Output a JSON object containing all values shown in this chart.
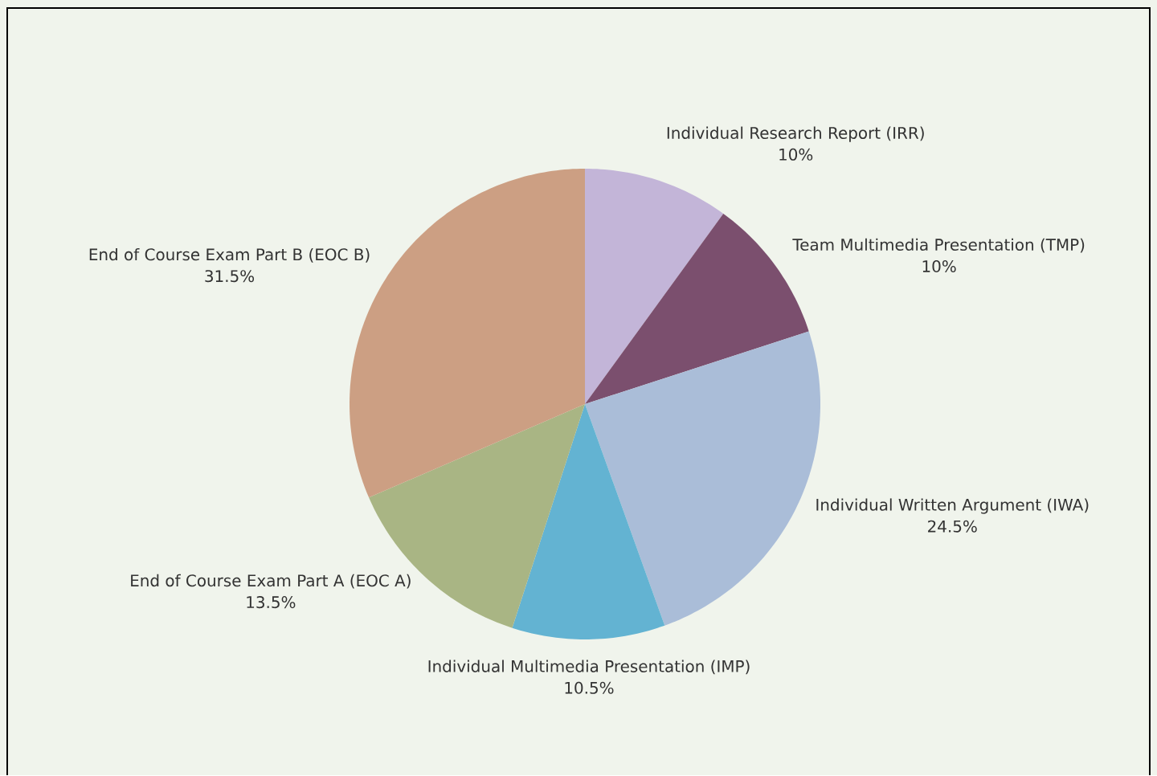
{
  "chart_data": {
    "type": "pie",
    "categories": [
      "Individual Research Report (IRR)",
      "Team Multimedia Presentation (TMP)",
      "Individual Written Argument (IWA)",
      "Individual Multimedia Presentation (IMP)",
      "End of Course Exam Part A (EOC A)",
      "End of Course Exam Part B (EOC B)"
    ],
    "values": [
      10,
      10,
      24.5,
      10.5,
      13.5,
      31.5
    ],
    "value_labels": [
      "10%",
      "10%",
      "24.5%",
      "10.5%",
      "13.5%",
      "31.5%"
    ],
    "colors": [
      "#c3b5d8",
      "#7b4f6e",
      "#aabdd8",
      "#63b3d2",
      "#a9b584",
      "#cc9f83"
    ]
  }
}
